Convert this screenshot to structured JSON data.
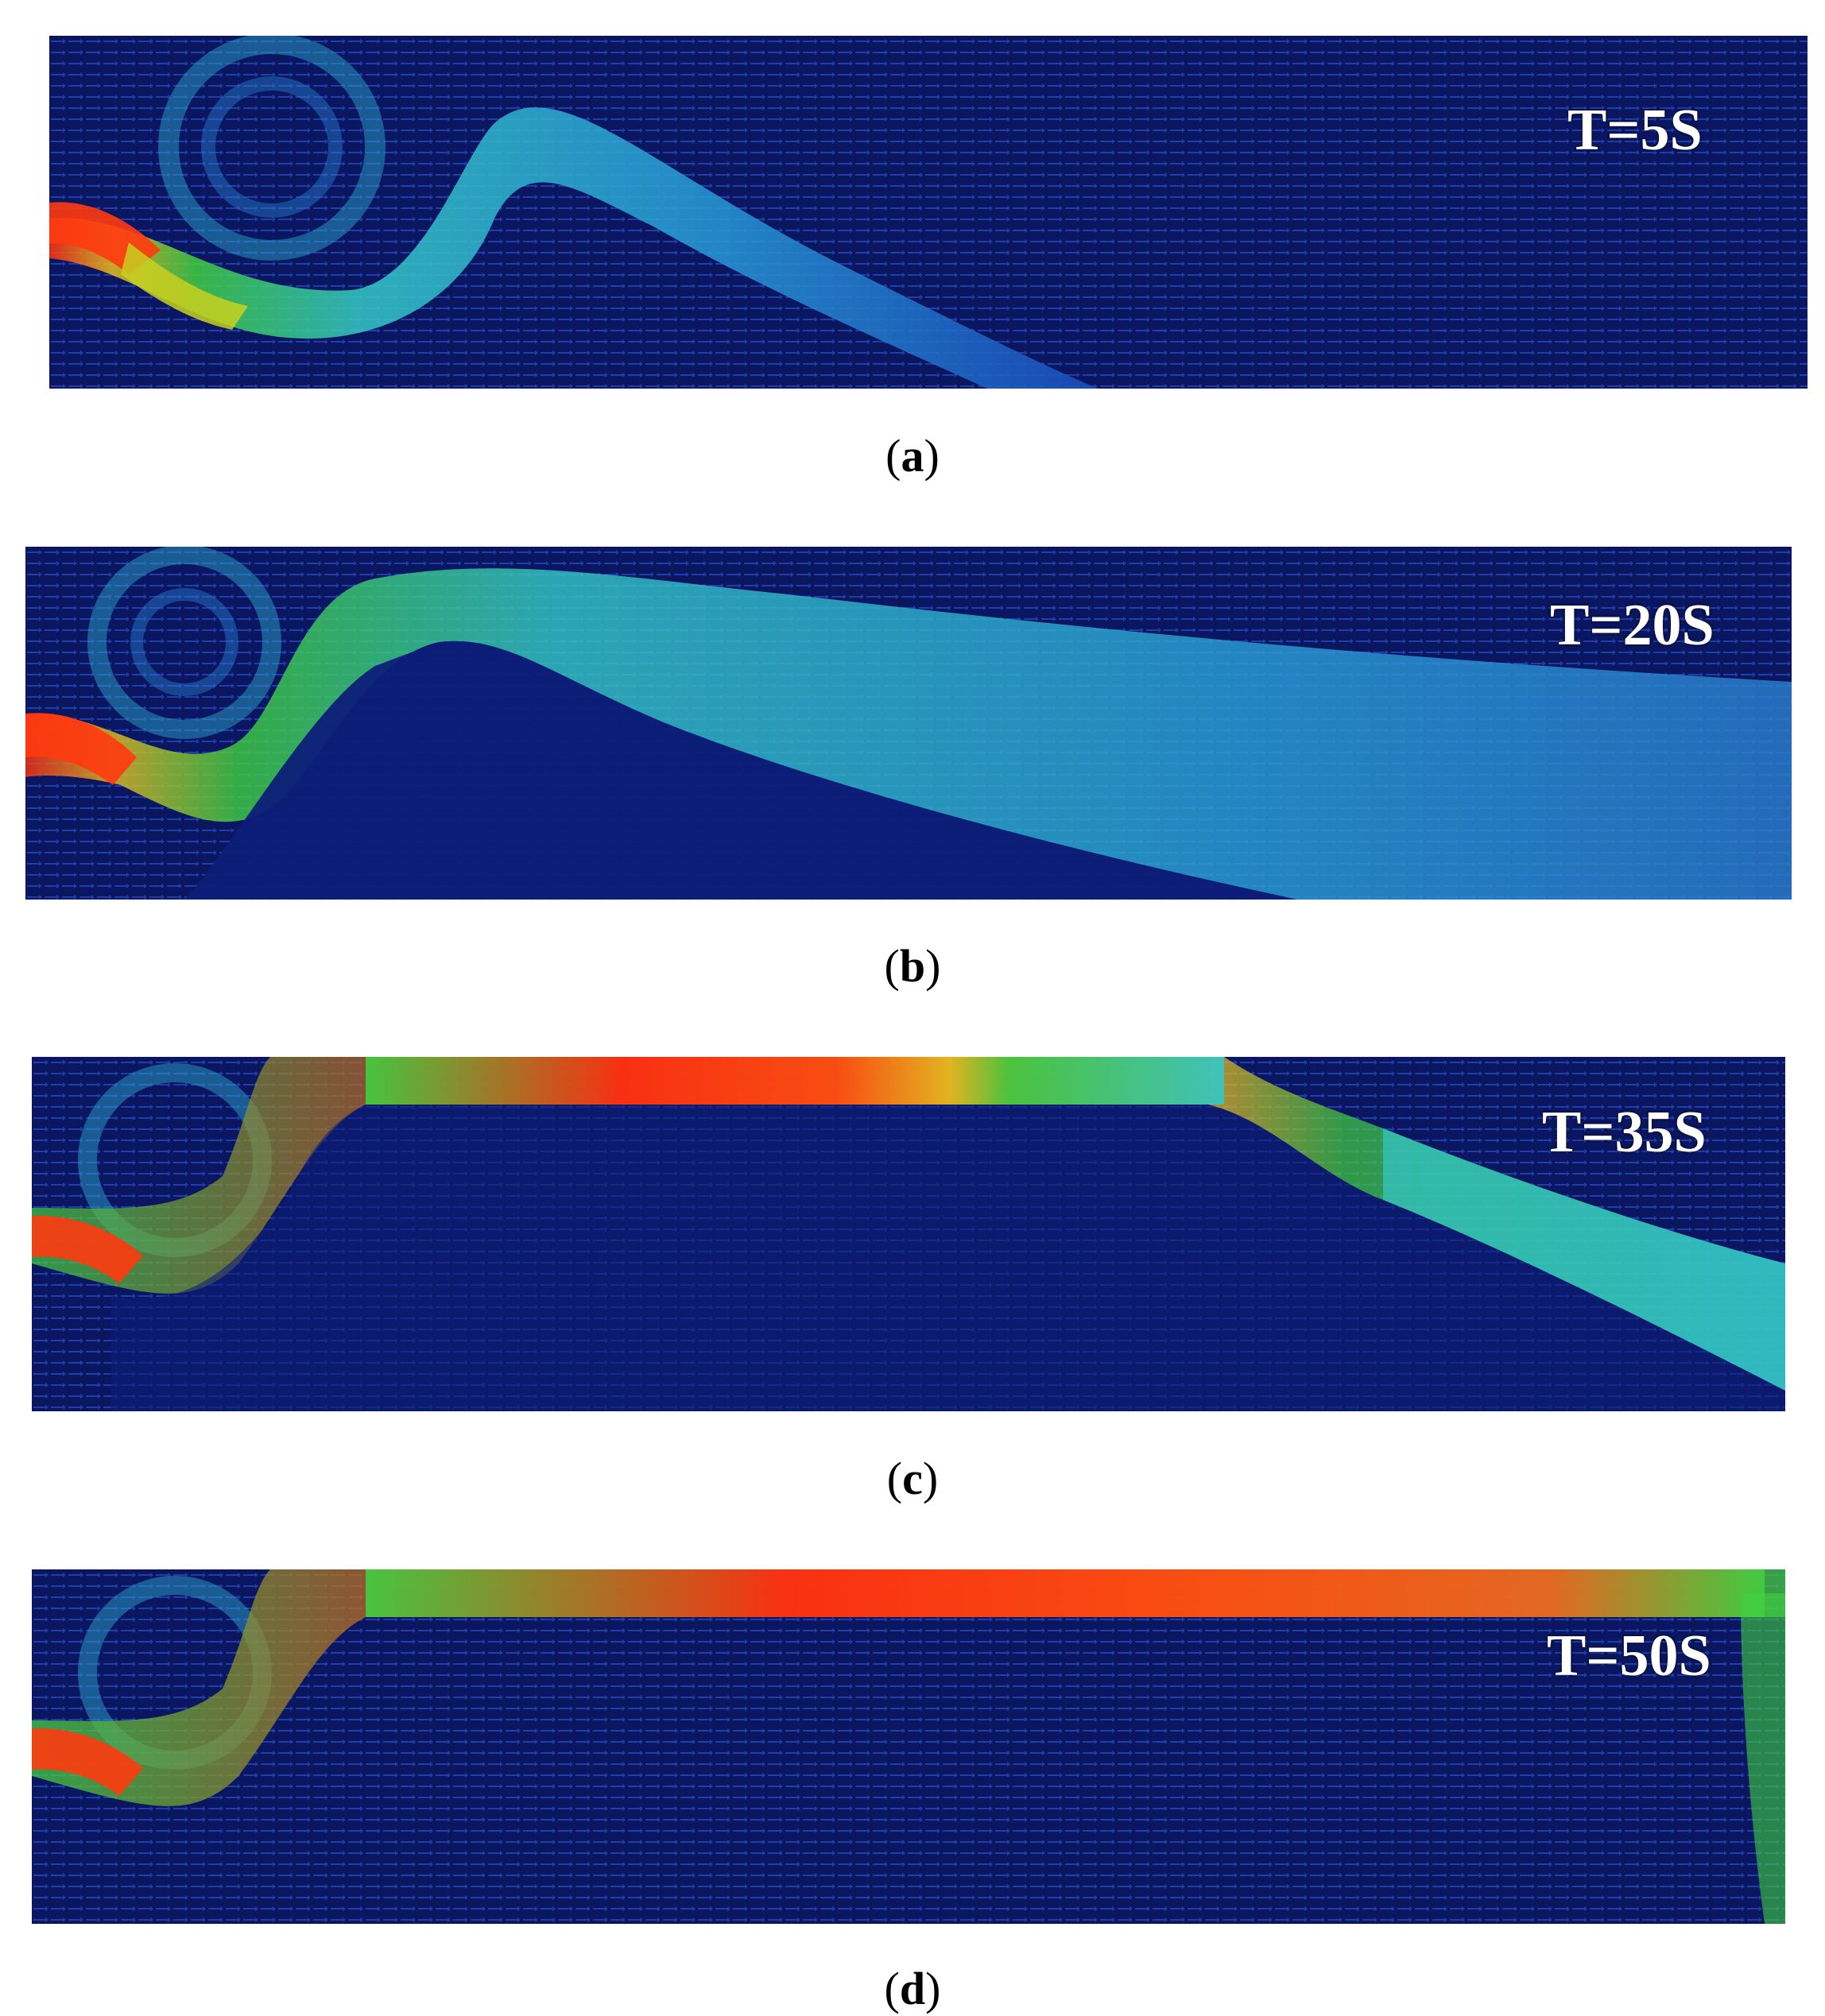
{
  "colors": {
    "background_field": "#0a1660",
    "low_velocity": "#1530c8",
    "mid_velocity": "#35c8c8",
    "high_mid_velocity": "#40d040",
    "high_velocity": "#ff3010"
  },
  "panels": [
    {
      "id": "a",
      "time_label": "T=5S",
      "caption_letter": "a"
    },
    {
      "id": "b",
      "time_label": "T=20S",
      "caption_letter": "b"
    },
    {
      "id": "c",
      "time_label": "T=35S",
      "caption_letter": "c"
    },
    {
      "id": "d",
      "time_label": "T=50S",
      "caption_letter": "d"
    }
  ]
}
